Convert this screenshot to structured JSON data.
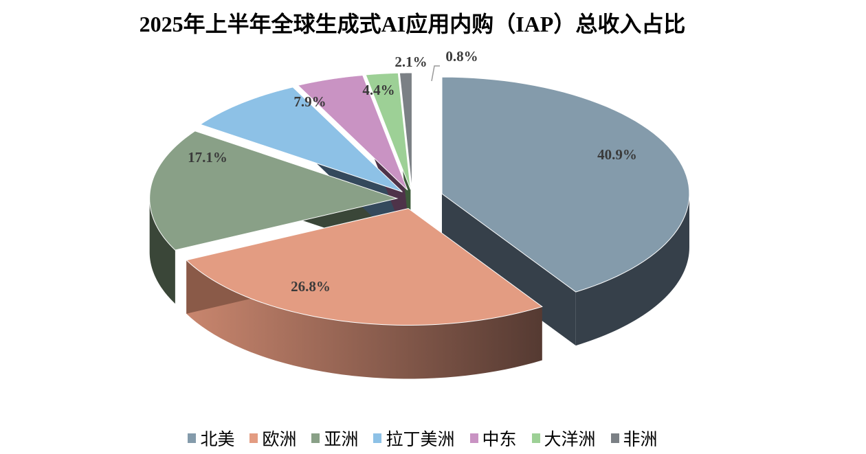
{
  "chart_data": {
    "type": "pie",
    "title": "2025年上半年全球生成式AI应用内购（IAP）总收入占比",
    "categories": [
      "北美",
      "欧洲",
      "亚洲",
      "拉丁美洲",
      "中东",
      "大洋洲",
      "非洲"
    ],
    "values": [
      40.9,
      26.8,
      17.1,
      7.9,
      4.4,
      2.1,
      0.8
    ],
    "labels": [
      "40.9%",
      "26.8%",
      "17.1%",
      "7.9%",
      "4.4%",
      "2.1%",
      "0.8%"
    ],
    "colors": [
      "#849bab",
      "#e39c82",
      "#89a087",
      "#8dc1e6",
      "#c993c3",
      "#9dd096",
      "#7b8085"
    ],
    "side_colors": [
      "#36404a",
      "#8a5a48",
      "#3a4638",
      "#34495c",
      "#4e3349",
      "#3d5a3a",
      "#5d6166"
    ],
    "legend_position": "bottom"
  }
}
